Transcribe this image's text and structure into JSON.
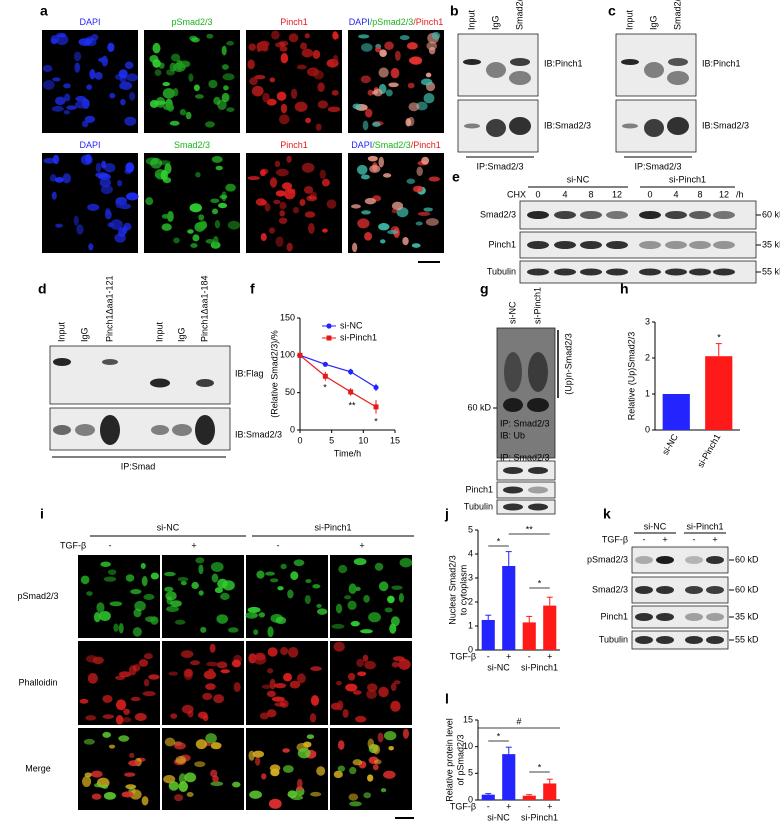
{
  "a": {
    "letter": "a",
    "rows": [
      [
        [
          {
            "text": "DAPI",
            "color": "#2424ff"
          }
        ],
        [
          {
            "text": "pSmad2/3",
            "color": "#19b319"
          }
        ],
        [
          {
            "text": "Pinch1",
            "color": "#e61919"
          }
        ],
        [
          {
            "text": "DAPI",
            "color": "#2424ff"
          },
          {
            "text": "/",
            "color": "#19b319"
          },
          {
            "text": "pSmad2/3",
            "color": "#19b319"
          },
          {
            "text": "/",
            "color": "#e61919"
          },
          {
            "text": "Pinch1",
            "color": "#e61919"
          }
        ]
      ],
      [
        [
          {
            "text": "DAPI",
            "color": "#2424ff"
          }
        ],
        [
          {
            "text": "Smad2/3",
            "color": "#19b319"
          }
        ],
        [
          {
            "text": "Pinch1",
            "color": "#e61919"
          }
        ],
        [
          {
            "text": "DAPI",
            "color": "#2424ff"
          },
          {
            "text": "/",
            "color": "#19b319"
          },
          {
            "text": "Smad2/3",
            "color": "#19b319"
          },
          {
            "text": "/",
            "color": "#e61919"
          },
          {
            "text": "Pinch1",
            "color": "#e61919"
          }
        ]
      ]
    ]
  },
  "b": {
    "letter": "b",
    "lanes": [
      "Input",
      "IgG",
      "Smad2/3"
    ],
    "blots": [
      "IB:Pinch1",
      "IB:Smad2/3"
    ],
    "ip": "IP:Smad2/3"
  },
  "c": {
    "letter": "c",
    "lanes": [
      "Input",
      "IgG",
      "Smad2/3"
    ],
    "blots": [
      "IB:Pinch1",
      "IB:Smad2/3"
    ],
    "ip": "IP:Smad2/3"
  },
  "d": {
    "letter": "d",
    "lanes": [
      "Input",
      "IgG",
      "Pinch1Δaa1-121",
      "Input",
      "IgG",
      "Pinch1Δaa1-184"
    ],
    "blots": [
      "IB:Flag",
      "IB:Smad2/3"
    ],
    "ip": "IP:Smad"
  },
  "e": {
    "letter": "e",
    "treatment": "CHX",
    "groups": [
      "si-NC",
      "si-Pinch1"
    ],
    "times": [
      0,
      4,
      8,
      12,
      0,
      4,
      8,
      12
    ],
    "unit": "/h",
    "rows": [
      "Smad2/3",
      "Pinch1",
      "Tubulin"
    ],
    "markers": [
      "60 kD",
      "35 kD",
      "55 kD"
    ]
  },
  "g": {
    "letter": "g",
    "lanes": [
      "si-NC",
      "si-Pinch1"
    ],
    "bracket": "(Up)n-Smad2/3",
    "marker": "60 kD",
    "ip_ib": [
      "IP: Smad2/3",
      "IB: Ub"
    ],
    "rows": [
      "IP: Smad2/3",
      "Pinch1",
      "Tubulin"
    ]
  },
  "i": {
    "letter": "i",
    "groups": [
      "si-NC",
      "si-Pinch1"
    ],
    "treatment": "TGF-β",
    "conditions": [
      "-",
      "+",
      "-",
      "+"
    ],
    "rows": [
      {
        "text": "pSmad2/3",
        "color": "#19b319"
      },
      {
        "text": "Phalloidin",
        "color": "#e61919"
      },
      {
        "text": "Merge",
        "color": "#000000"
      }
    ]
  },
  "k": {
    "letter": "k",
    "groups": [
      "si-NC",
      "si-Pinch1"
    ],
    "treatment": "TGF-β",
    "conditions": [
      "-",
      "+",
      "-",
      "+"
    ],
    "rows": [
      "pSmad2/3",
      "Smad2/3",
      "Pinch1",
      "Tubulin"
    ],
    "markers": [
      "60 kD",
      "60 kD",
      "35 kD",
      "55 kD"
    ]
  },
  "chart_data": [
    {
      "type": "line",
      "panel": "f",
      "ylabel": "(Relative Smad2/3)/%",
      "xlabel": "Time/h",
      "x": [
        0,
        4,
        8,
        12
      ],
      "xlim": [
        0,
        15
      ],
      "xticks": [
        0,
        5,
        10,
        15
      ],
      "ylim": [
        0,
        150
      ],
      "yticks": [
        0,
        50,
        100,
        150
      ],
      "series": [
        {
          "name": "si-NC",
          "color": "#2424ff",
          "marker": "circle",
          "values": [
            100,
            88,
            78,
            57
          ],
          "errors": [
            0,
            2,
            4,
            5
          ]
        },
        {
          "name": "si-Pinch1",
          "color": "#e61919",
          "marker": "square",
          "values": [
            100,
            72,
            51,
            31
          ],
          "errors": [
            0,
            6,
            5,
            9
          ]
        }
      ],
      "annotations": [
        "*",
        "**",
        "*"
      ]
    },
    {
      "type": "bar",
      "panel": "h",
      "ylabel": "Relative (Up)Smad2/3",
      "categories": [
        "si-NC",
        "si-Pinch1"
      ],
      "values": [
        1,
        2.05
      ],
      "errors": [
        0,
        0.35
      ],
      "colors": [
        "#2424ff",
        "#ff1a1a"
      ],
      "ylim": [
        0,
        3
      ],
      "yticks": [
        0,
        1,
        2,
        3
      ],
      "annotations": [
        "*"
      ]
    },
    {
      "type": "bar",
      "panel": "j",
      "ylabel": [
        "Nuclear Smad2/3",
        "to cytoplasm"
      ],
      "category_axis_label": "TGF-β",
      "categories": [
        "-",
        "+",
        "-",
        "+"
      ],
      "groups": [
        "si-NC",
        "si-Pinch1"
      ],
      "values": [
        1.25,
        3.5,
        1.15,
        1.85
      ],
      "errors": [
        0.2,
        0.6,
        0.25,
        0.35
      ],
      "colors": [
        "#2424ff",
        "#2424ff",
        "#ff1a1a",
        "#ff1a1a"
      ],
      "ylim": [
        0,
        5
      ],
      "yticks": [
        0,
        1,
        2,
        3,
        4,
        5
      ],
      "annotations": [
        "*",
        "**",
        "*"
      ]
    },
    {
      "type": "bar",
      "panel": "l",
      "ylabel": [
        "Relative protein level",
        "of pSmad2/3"
      ],
      "category_axis_label": "TGF-β",
      "categories": [
        "-",
        "+",
        "-",
        "+"
      ],
      "groups": [
        "si-NC",
        "si-Pinch1"
      ],
      "values": [
        1,
        8.6,
        0.8,
        3.1
      ],
      "errors": [
        0.2,
        1.3,
        0.2,
        0.8
      ],
      "colors": [
        "#2424ff",
        "#2424ff",
        "#ff1a1a",
        "#ff1a1a"
      ],
      "ylim": [
        0,
        15
      ],
      "yticks": [
        0,
        5,
        10,
        15
      ],
      "annotations": [
        "*",
        "#",
        "*"
      ]
    }
  ]
}
